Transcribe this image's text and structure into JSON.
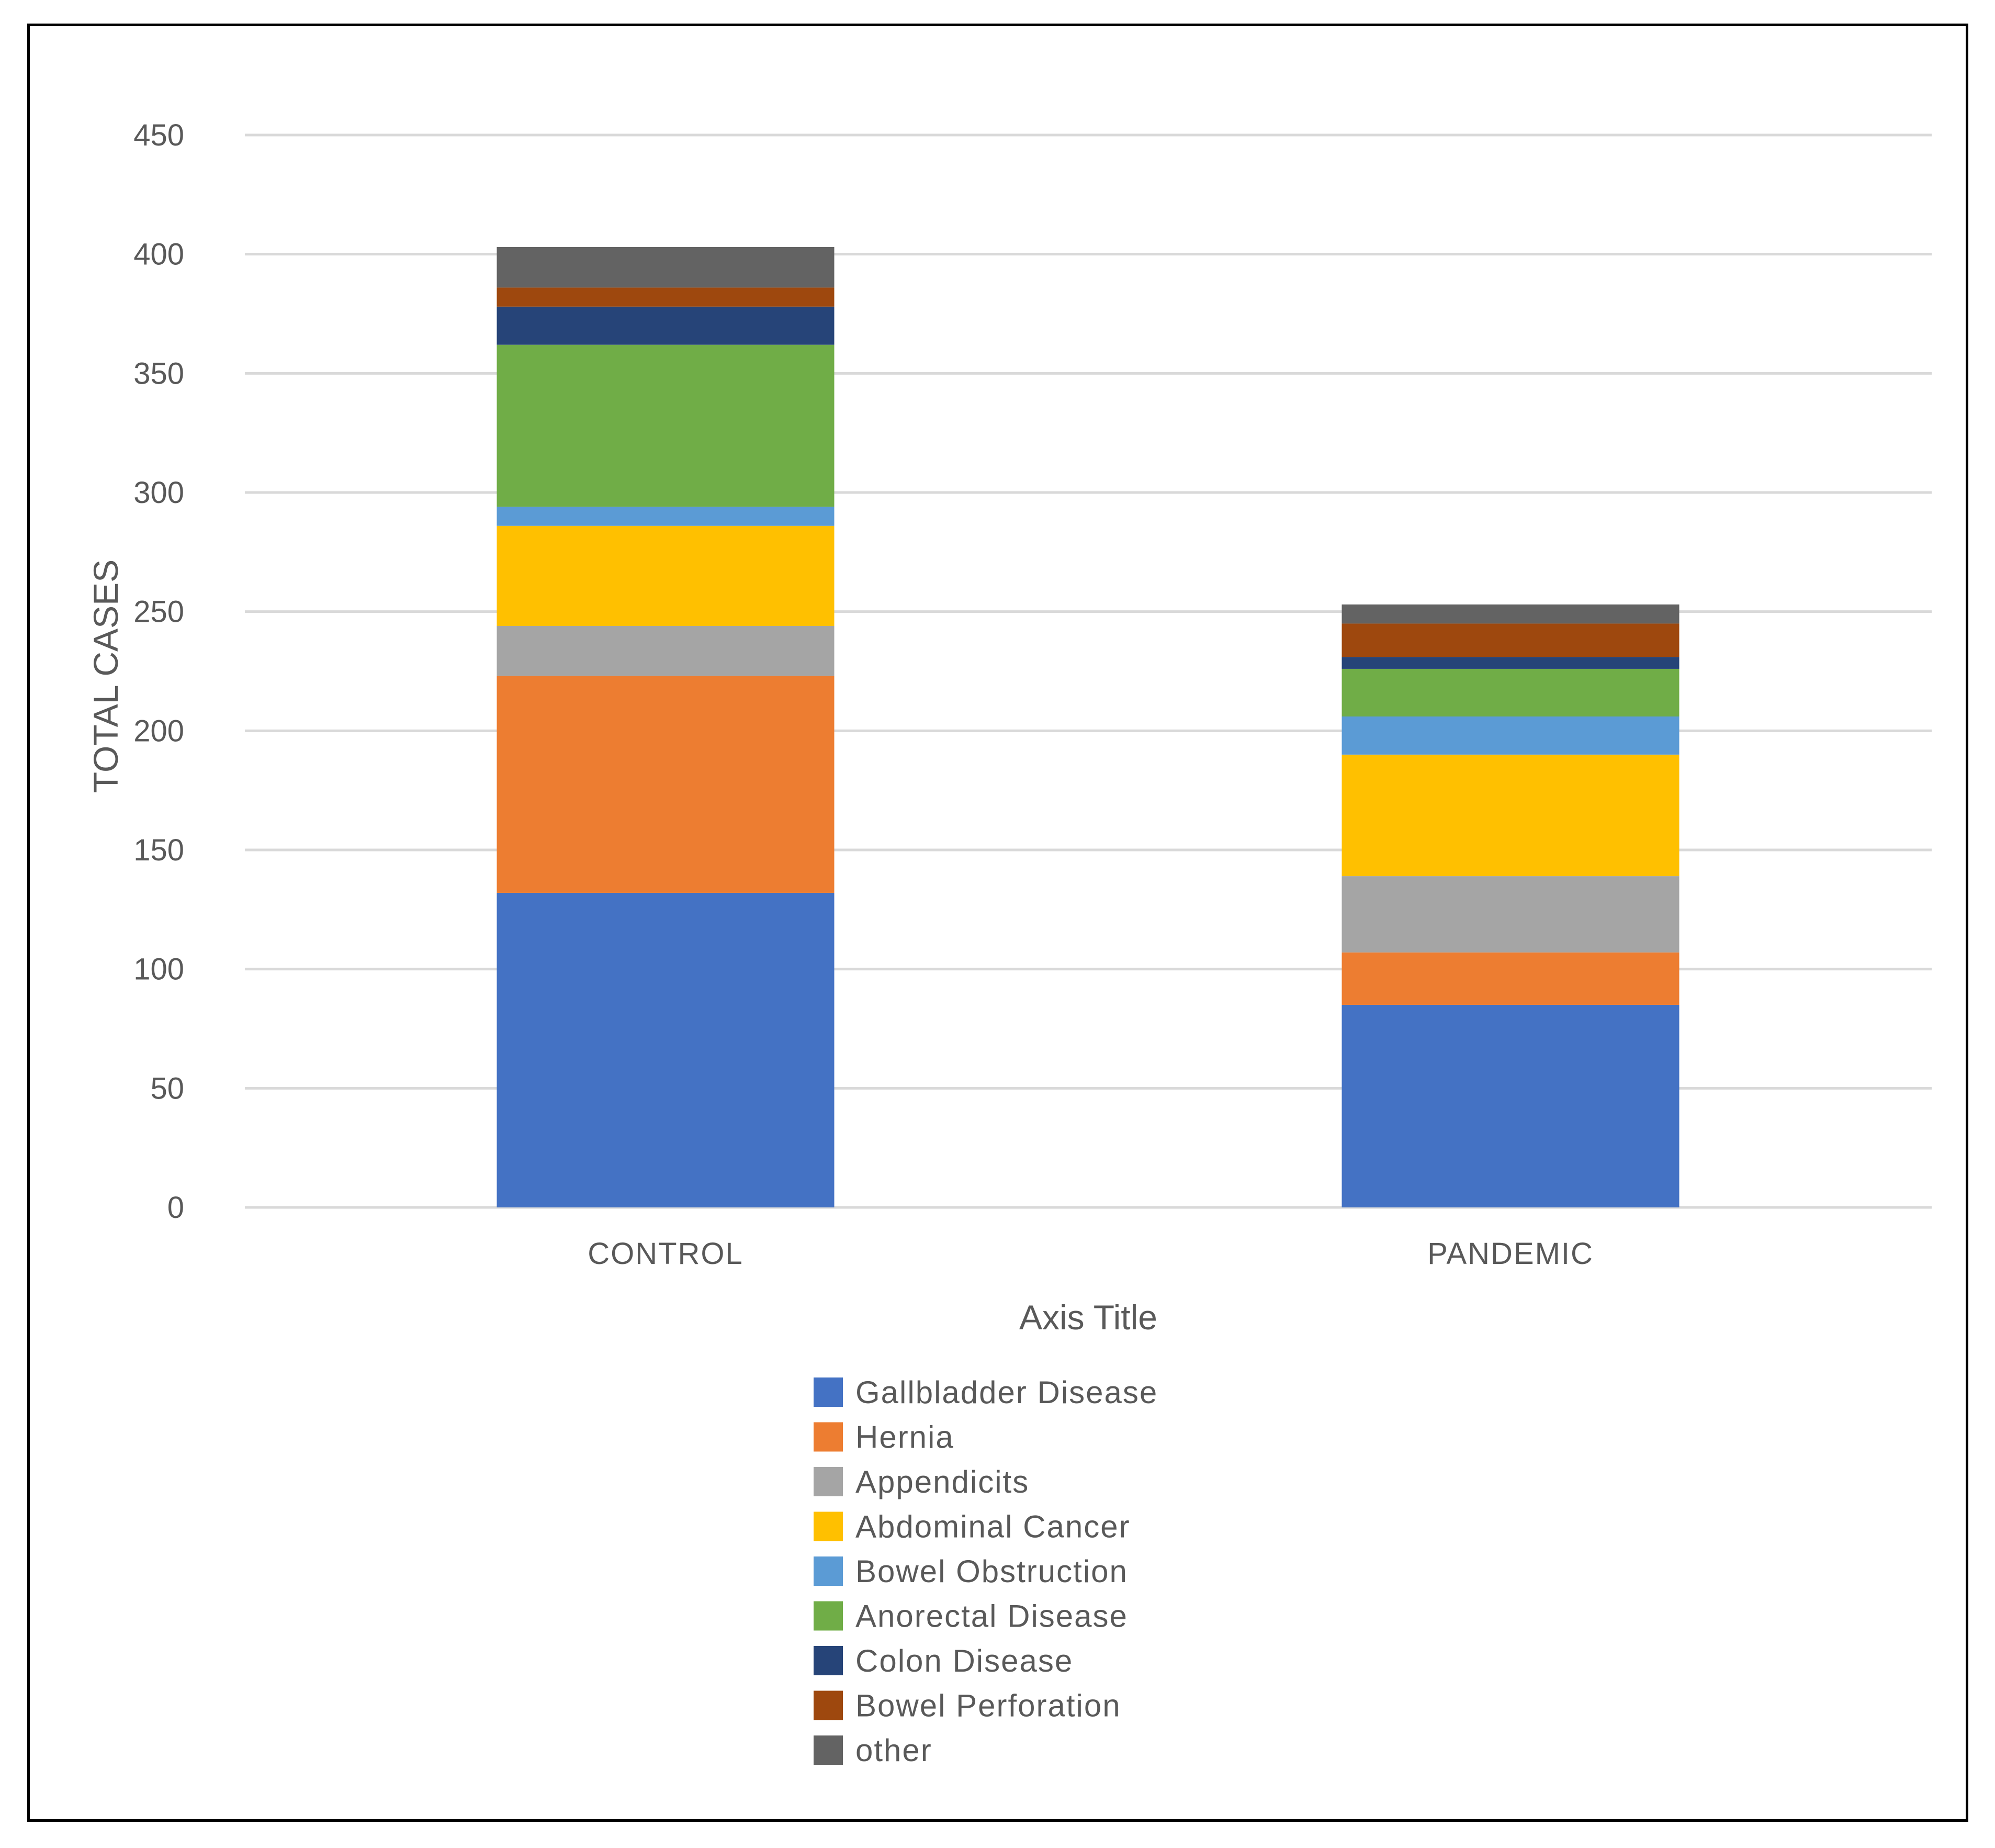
{
  "chart_data": {
    "type": "bar",
    "stacked": true,
    "title": "",
    "xlabel": "Axis Title",
    "ylabel": "TOTAL CASES",
    "ylim": [
      0,
      450
    ],
    "yticks": [
      0,
      50,
      100,
      150,
      200,
      250,
      300,
      350,
      400,
      450
    ],
    "grid": true,
    "legend": "bottom",
    "categories": [
      "CONTROL",
      "PANDEMIC"
    ],
    "series": [
      {
        "name": "Gallbladder Disease",
        "color": "#4472C4",
        "values": [
          132,
          85
        ]
      },
      {
        "name": "Hernia",
        "color": "#ED7D31",
        "values": [
          91,
          22
        ]
      },
      {
        "name": "Appendicits",
        "color": "#A5A5A5",
        "values": [
          21,
          32
        ]
      },
      {
        "name": "Abdominal Cancer",
        "color": "#FFC000",
        "values": [
          42,
          51
        ]
      },
      {
        "name": "Bowel Obstruction",
        "color": "#5B9BD5",
        "values": [
          8,
          16
        ]
      },
      {
        "name": "Anorectal Disease",
        "color": "#70AD47",
        "values": [
          68,
          20
        ]
      },
      {
        "name": "Colon Disease",
        "color": "#264478",
        "values": [
          16,
          5
        ]
      },
      {
        "name": "Bowel Perforation",
        "color": "#9E480E",
        "values": [
          8,
          14
        ]
      },
      {
        "name": "other",
        "color": "#636363",
        "values": [
          17,
          8
        ]
      }
    ]
  }
}
